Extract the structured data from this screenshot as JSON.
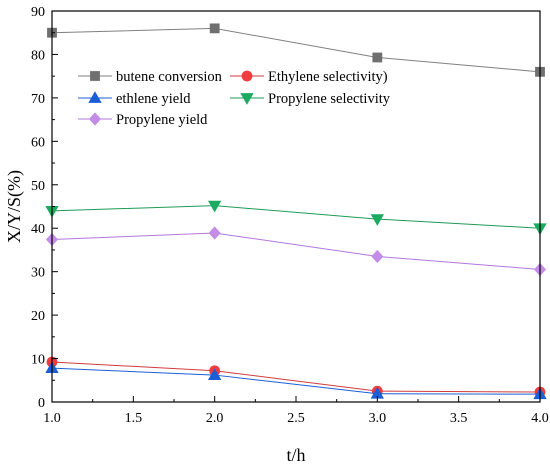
{
  "chart_data": {
    "type": "line",
    "title": "",
    "xlabel": "t/h",
    "ylabel": "X/Y/S(%)",
    "xlim": [
      1.0,
      4.0
    ],
    "ylim": [
      0,
      90
    ],
    "x_ticks": [
      "1.0",
      "1.5",
      "2.0",
      "2.5",
      "3.0",
      "3.5",
      "4.0"
    ],
    "y_ticks": [
      "0",
      "10",
      "20",
      "30",
      "40",
      "50",
      "60",
      "70",
      "80",
      "90"
    ],
    "x": [
      1.0,
      2.0,
      3.0,
      4.0
    ],
    "grid": false,
    "legend": "upper-left",
    "series": [
      {
        "name": "butene conversion",
        "values": [
          85.0,
          86.0,
          79.3,
          76.0
        ],
        "line_color": "#808080",
        "marker_color": "#6f6f6f",
        "marker": "square"
      },
      {
        "name": "Ethylene selectivity)",
        "values": [
          9.2,
          7.2,
          2.5,
          2.3
        ],
        "line_color": "#d23c3c",
        "marker_color": "#f03c3c",
        "marker": "circle"
      },
      {
        "name": "ethlene yield",
        "values": [
          7.8,
          6.2,
          1.9,
          1.8
        ],
        "line_color": "#1a5fd6",
        "marker_color": "#1a5fd6",
        "marker": "triangle-up"
      },
      {
        "name": "Propylene selectivity",
        "values": [
          44.0,
          45.2,
          42.1,
          40.0
        ],
        "line_color": "#1f9a57",
        "marker_color": "#1bab60",
        "marker": "triangle-down"
      },
      {
        "name": "Propylene yield",
        "values": [
          37.4,
          38.9,
          33.5,
          30.5
        ],
        "line_color": "#b277e0",
        "marker_color": "#c38ce8",
        "marker": "diamond"
      }
    ]
  }
}
